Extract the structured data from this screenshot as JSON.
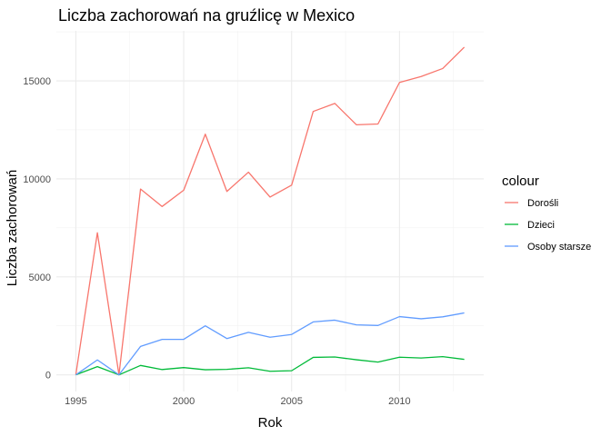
{
  "chart_data": {
    "type": "line",
    "title": "Liczba zachorowań na gruźlicę w Mexico",
    "xlabel": "Rok",
    "ylabel": "Liczba zachorowań",
    "x": [
      1995,
      1996,
      1997,
      1998,
      1999,
      2000,
      2001,
      2002,
      2003,
      2004,
      2005,
      2006,
      2007,
      2008,
      2009,
      2010,
      2011,
      2012,
      2013
    ],
    "xlim": [
      1994.1,
      2013.9
    ],
    "ylim": [
      -850,
      17550
    ],
    "x_ticks": [
      1995,
      2000,
      2005,
      2010
    ],
    "y_ticks": [
      0,
      5000,
      10000,
      15000
    ],
    "x_tick_labels": [
      "1995",
      "2000",
      "2005",
      "2010"
    ],
    "y_tick_labels": [
      "0",
      "5000",
      "10000",
      "15000"
    ],
    "grid": true,
    "legend": {
      "title": "colour",
      "placement": "right"
    },
    "series": [
      {
        "name": "Dorośli",
        "color": "#F8766D",
        "values": [
          0,
          7250,
          0,
          9480,
          8590,
          9420,
          12280,
          9360,
          10340,
          9070,
          9680,
          13440,
          13850,
          12760,
          12800,
          14920,
          15220,
          15630,
          16720
        ]
      },
      {
        "name": "Dzieci",
        "color": "#00BA38",
        "values": [
          0,
          420,
          0,
          480,
          270,
          370,
          260,
          280,
          360,
          180,
          210,
          890,
          910,
          770,
          650,
          900,
          860,
          930,
          790
        ]
      },
      {
        "name": "Osoby starsze",
        "color": "#619CFF",
        "values": [
          0,
          760,
          0,
          1450,
          1810,
          1810,
          2500,
          1850,
          2170,
          1920,
          2060,
          2700,
          2790,
          2550,
          2520,
          2970,
          2860,
          2960,
          3160
        ]
      }
    ]
  }
}
